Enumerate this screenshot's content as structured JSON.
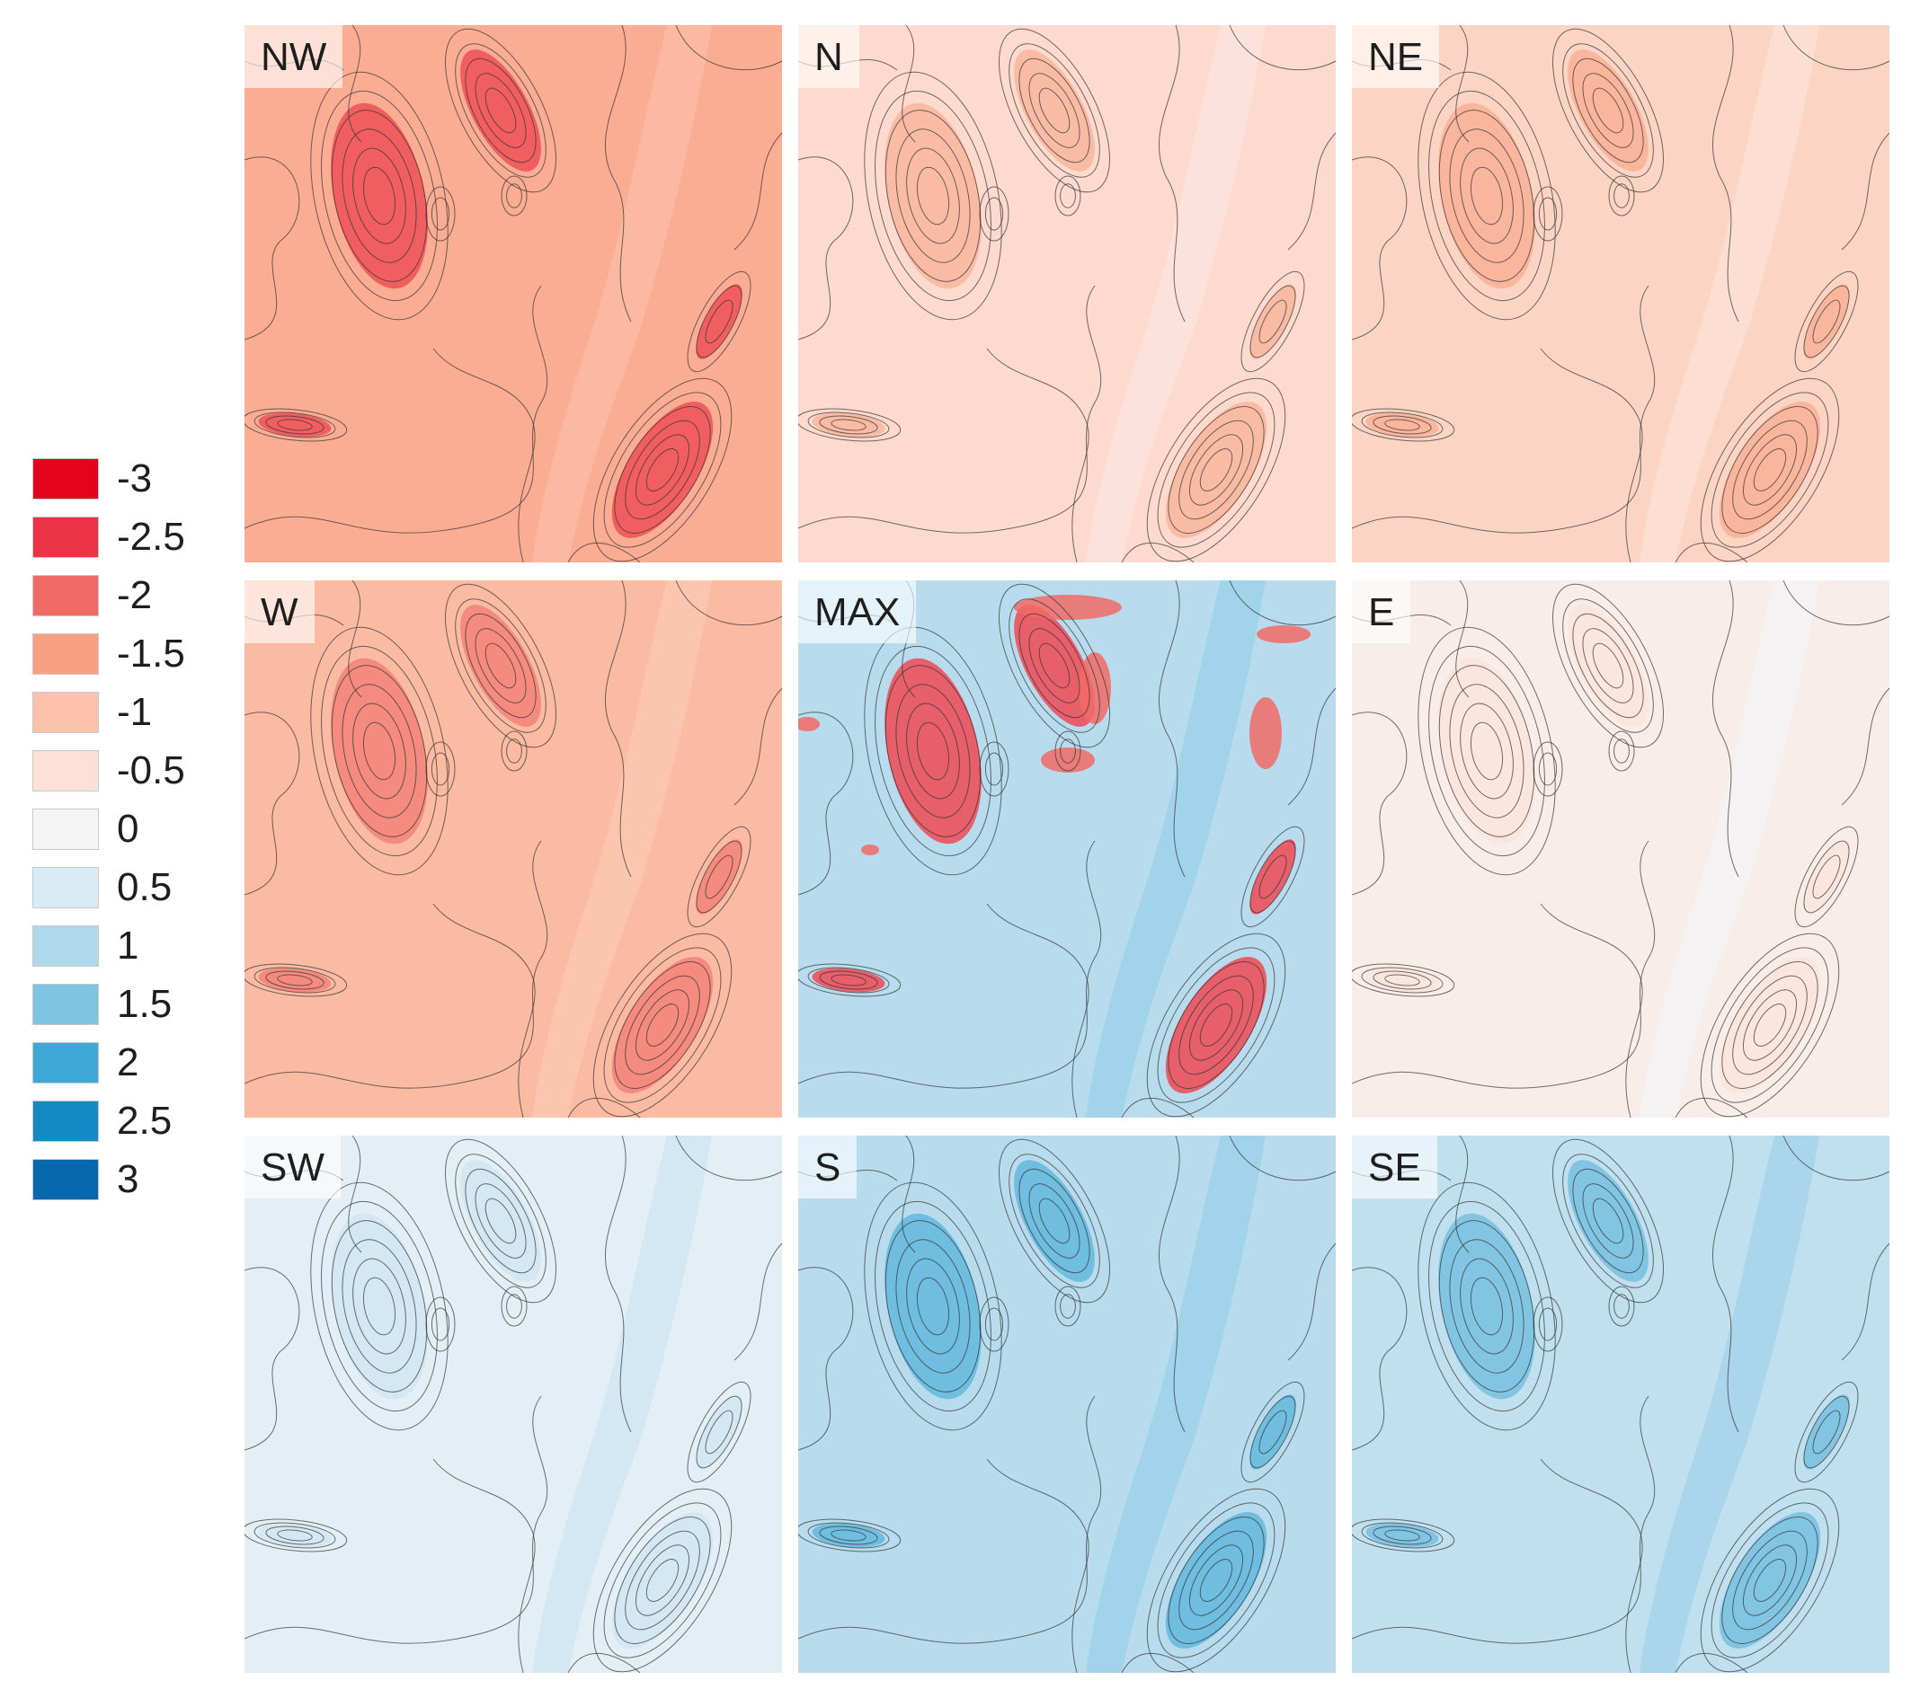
{
  "legend": {
    "items": [
      {
        "label": "-3",
        "color": "#e3041b"
      },
      {
        "label": "-2.5",
        "color": "#ea3344"
      },
      {
        "label": "-2",
        "color": "#f26a66"
      },
      {
        "label": "-1.5",
        "color": "#f9a083"
      },
      {
        "label": "-1",
        "color": "#fbc1aa"
      },
      {
        "label": "-0.5",
        "color": "#fde0d6"
      },
      {
        "label": "0",
        "color": "#f5f5f5"
      },
      {
        "label": "0.5",
        "color": "#d9ebf5"
      },
      {
        "label": "1",
        "color": "#b0d8ec"
      },
      {
        "label": "1.5",
        "color": "#7ec4e3"
      },
      {
        "label": "2",
        "color": "#3ea8d6"
      },
      {
        "label": "2.5",
        "color": "#1489c3"
      },
      {
        "label": "3",
        "color": "#0768ad"
      }
    ]
  },
  "panels": [
    {
      "label": "NW",
      "value": -1.3,
      "hot": -2.6,
      "mode": "red"
    },
    {
      "label": "N",
      "value": -0.6,
      "hot": -1.4,
      "mode": "red"
    },
    {
      "label": "NE",
      "value": -0.7,
      "hot": -1.5,
      "mode": "red"
    },
    {
      "label": "W",
      "value": -1.1,
      "hot": -2.0,
      "mode": "red"
    },
    {
      "label": "MAX",
      "value": 0.9,
      "hot": -2.5,
      "mode": "mixed"
    },
    {
      "label": "E",
      "value": -0.2,
      "hot": -0.5,
      "mode": "red"
    },
    {
      "label": "SW",
      "value": 0.3,
      "hot": 0.7,
      "mode": "blue"
    },
    {
      "label": "S",
      "value": 0.9,
      "hot": 2.0,
      "mode": "blue"
    },
    {
      "label": "SE",
      "value": 0.8,
      "hot": 1.8,
      "mode": "blue"
    }
  ]
}
